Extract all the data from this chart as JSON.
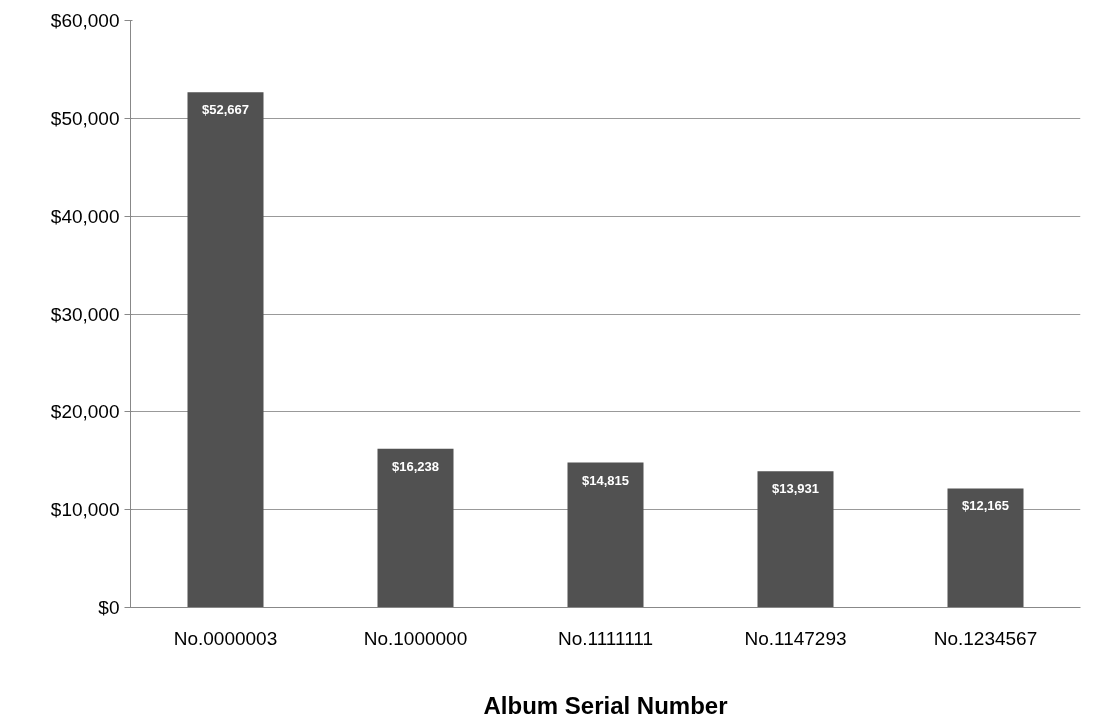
{
  "chart_data": {
    "type": "bar",
    "xlabel": "Album Serial Number",
    "categories": [
      "No.0000003",
      "No.1000000",
      "No.1111111",
      "No.1147293",
      "No.1234567"
    ],
    "values": [
      52667,
      16238,
      14815,
      13931,
      12165
    ],
    "value_labels": [
      "$52,667",
      "$16,238",
      "$14,815",
      "$13,931",
      "$12,165"
    ],
    "color": "#515151",
    "ylim": [
      0,
      60000
    ],
    "yticks": [
      {
        "value": 0,
        "label": "$0"
      },
      {
        "value": 10000,
        "label": "$10,000"
      },
      {
        "value": 20000,
        "label": "$20,000"
      },
      {
        "value": 30000,
        "label": "$30,000"
      },
      {
        "value": 40000,
        "label": "$40,000"
      },
      {
        "value": 50000,
        "label": "$50,000"
      },
      {
        "value": 60000,
        "label": "$60,000"
      }
    ],
    "grid": "y"
  }
}
